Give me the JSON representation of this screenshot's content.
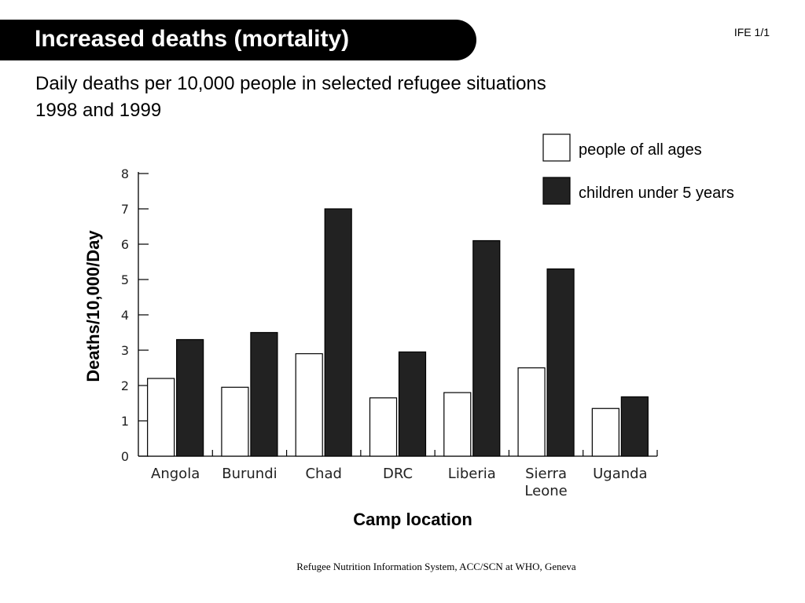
{
  "slide": {
    "title": "Increased deaths (mortality)",
    "code": "IFE 1/1",
    "subtitle": "Daily deaths per 10,000 people in selected refugee situations 1998 and 1999",
    "footer": "Refugee Nutrition Information System, ACC/SCN at WHO, Geneva"
  },
  "chart_data": {
    "type": "bar",
    "categories": [
      [
        "Angola"
      ],
      [
        "Burundi"
      ],
      [
        "Chad"
      ],
      [
        "DRC"
      ],
      [
        "Liberia"
      ],
      [
        "Sierra",
        "Leone"
      ],
      [
        "Uganda"
      ]
    ],
    "series": [
      {
        "name": "people of all ages",
        "color": "#ffffff",
        "values": [
          2.2,
          1.95,
          2.9,
          1.65,
          1.8,
          2.5,
          1.35
        ]
      },
      {
        "name": "children under 5 years",
        "color": "#222222",
        "values": [
          3.3,
          3.5,
          7.0,
          2.95,
          6.1,
          5.3,
          1.68
        ]
      }
    ],
    "xlabel": "Camp location",
    "ylabel": "Deaths/10,000/Day",
    "ylim": [
      0,
      8
    ],
    "yticks": [
      0,
      1,
      2,
      3,
      4,
      5,
      6,
      7,
      8
    ],
    "legend_position": "top-right",
    "grid": false
  }
}
